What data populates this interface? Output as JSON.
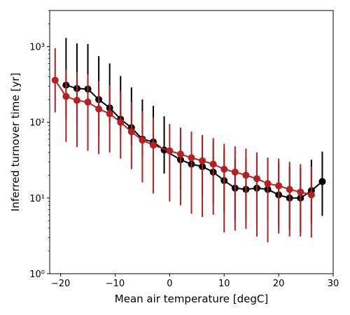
{
  "chart_data": {
    "type": "scatter",
    "title": "",
    "xlabel": "Mean air temperature [degC]",
    "ylabel": "Inferred turnover time [yr]",
    "xlim": [
      -22,
      30
    ],
    "ylim": [
      1,
      3000
    ],
    "yscale": "log",
    "grid": false,
    "x_ticks": [
      -20,
      -10,
      0,
      10,
      20,
      30
    ],
    "x_tick_labels": [
      "−20",
      "−10",
      "0",
      "10",
      "20",
      "30"
    ],
    "y_ticks": [
      1,
      10,
      100,
      1000
    ],
    "y_tick_labels": [
      "10⁰",
      "10¹",
      "10²",
      "10³"
    ],
    "series": [
      {
        "color": "#000000",
        "points": [
          {
            "x": -19,
            "y": 310,
            "lo": 110,
            "hi": 1300
          },
          {
            "x": -17,
            "y": 280,
            "lo": 95,
            "hi": 1100
          },
          {
            "x": -15,
            "y": 275,
            "lo": 90,
            "hi": 1080
          },
          {
            "x": -13,
            "y": 200,
            "lo": 65,
            "hi": 750
          },
          {
            "x": -11,
            "y": 155,
            "lo": 100,
            "hi": 600
          },
          {
            "x": -9,
            "y": 110,
            "lo": 70,
            "hi": 410
          },
          {
            "x": -7,
            "y": 85,
            "lo": 50,
            "hi": 290
          },
          {
            "x": -5,
            "y": 60,
            "lo": 35,
            "hi": 200
          },
          {
            "x": -3,
            "y": 55,
            "lo": 29,
            "hi": 165
          },
          {
            "x": -1,
            "y": 43,
            "lo": 21,
            "hi": 120
          },
          {
            "x": 2,
            "y": 32,
            "lo": 13,
            "hi": 85
          },
          {
            "x": 4,
            "y": 28,
            "lo": 11.5,
            "hi": 75
          },
          {
            "x": 6,
            "y": 26,
            "lo": 10.5,
            "hi": 68
          },
          {
            "x": 8,
            "y": 22,
            "lo": 8.5,
            "hi": 57
          },
          {
            "x": 10,
            "y": 17,
            "lo": 6.3,
            "hi": 43
          },
          {
            "x": 12,
            "y": 13.5,
            "lo": 5.0,
            "hi": 34
          },
          {
            "x": 14,
            "y": 13,
            "lo": 5.0,
            "hi": 33
          },
          {
            "x": 16,
            "y": 13.5,
            "lo": 5.2,
            "hi": 36
          },
          {
            "x": 18,
            "y": 13,
            "lo": 5.0,
            "hi": 34
          },
          {
            "x": 20,
            "y": 11,
            "lo": 4.2,
            "hi": 29
          },
          {
            "x": 22,
            "y": 10,
            "lo": 3.8,
            "hi": 26
          },
          {
            "x": 24,
            "y": 10,
            "lo": 3.5,
            "hi": 25
          },
          {
            "x": 26,
            "y": 12.5,
            "lo": 4.6,
            "hi": 32
          },
          {
            "x": 28,
            "y": 16.5,
            "lo": 5.8,
            "hi": 41
          }
        ]
      },
      {
        "color": "#b22222",
        "points": [
          {
            "x": -21,
            "y": 360,
            "lo": 135,
            "hi": 950
          },
          {
            "x": -19,
            "y": 220,
            "lo": 55,
            "hi": 500
          },
          {
            "x": -17,
            "y": 195,
            "lo": 47,
            "hi": 460
          },
          {
            "x": -15,
            "y": 185,
            "lo": 42,
            "hi": 430
          },
          {
            "x": -13,
            "y": 150,
            "lo": 38,
            "hi": 350
          },
          {
            "x": -11,
            "y": 130,
            "lo": 40,
            "hi": 310
          },
          {
            "x": -9,
            "y": 100,
            "lo": 33,
            "hi": 255
          },
          {
            "x": -7,
            "y": 75,
            "lo": 24,
            "hi": 185
          },
          {
            "x": -5,
            "y": 58,
            "lo": 16,
            "hi": 140
          },
          {
            "x": -3,
            "y": 50,
            "lo": 11.5,
            "hi": 115
          },
          {
            "x": 0,
            "y": 42,
            "lo": 9,
            "hi": 95
          },
          {
            "x": 2,
            "y": 38,
            "lo": 8,
            "hi": 85
          },
          {
            "x": 4,
            "y": 34,
            "lo": 6.2,
            "hi": 75
          },
          {
            "x": 6,
            "y": 31,
            "lo": 5.6,
            "hi": 68
          },
          {
            "x": 8,
            "y": 28,
            "lo": 6.0,
            "hi": 62
          },
          {
            "x": 10,
            "y": 24,
            "lo": 3.5,
            "hi": 52
          },
          {
            "x": 12,
            "y": 22,
            "lo": 3.7,
            "hi": 48
          },
          {
            "x": 14,
            "y": 20,
            "lo": 3.9,
            "hi": 45
          },
          {
            "x": 16,
            "y": 18,
            "lo": 3.1,
            "hi": 40
          },
          {
            "x": 18,
            "y": 15.5,
            "lo": 2.6,
            "hi": 34
          },
          {
            "x": 20,
            "y": 14.5,
            "lo": 3.4,
            "hi": 33
          },
          {
            "x": 22,
            "y": 13,
            "lo": 3.1,
            "hi": 30
          },
          {
            "x": 24,
            "y": 12,
            "lo": 3.1,
            "hi": 28
          },
          {
            "x": 26,
            "y": 11,
            "lo": 3.0,
            "hi": 26
          }
        ]
      }
    ]
  }
}
